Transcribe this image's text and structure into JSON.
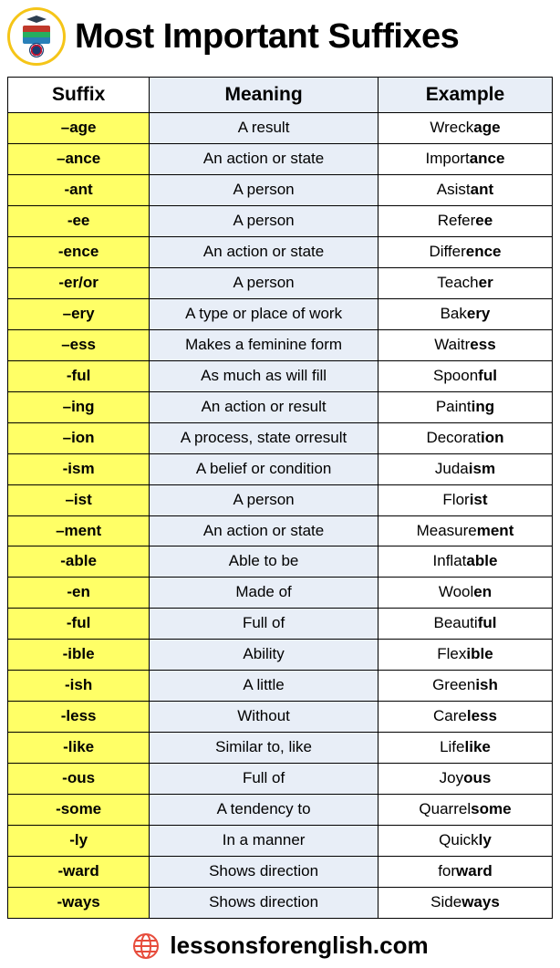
{
  "title": "Most Important Suffixes",
  "footer_url": "lessonsforenglish.com",
  "columns": [
    "Suffix",
    "Meaning",
    "Example"
  ],
  "rows": [
    {
      "suffix": "–age",
      "meaning": "A result",
      "stem": "Wreck",
      "bold": "age"
    },
    {
      "suffix": "–ance",
      "meaning": "An action or state",
      "stem": "Import",
      "bold": "ance"
    },
    {
      "suffix": "-ant",
      "meaning": "A person",
      "stem": "Asist",
      "bold": "ant"
    },
    {
      "suffix": "-ee",
      "meaning": "A person",
      "stem": "Refer",
      "bold": "ee"
    },
    {
      "suffix": "-ence",
      "meaning": "An action or state",
      "stem": "Differ",
      "bold": "ence"
    },
    {
      "suffix": "-er/or",
      "meaning": "A person",
      "stem": "Teach",
      "bold": "er"
    },
    {
      "suffix": "–ery",
      "meaning": "A type or place of work",
      "stem": "Bak",
      "bold": "ery"
    },
    {
      "suffix": "–ess",
      "meaning": "Makes a feminine form",
      "stem": "Waitr",
      "bold": "ess"
    },
    {
      "suffix": "-ful",
      "meaning": "As much as will fill",
      "stem": "Spoon",
      "bold": "ful"
    },
    {
      "suffix": "–ing",
      "meaning": "An action or result",
      "stem": "Paint",
      "bold": "ing"
    },
    {
      "suffix": "–ion",
      "meaning": "A process, state orresult",
      "stem": "Decorat",
      "bold": "ion"
    },
    {
      "suffix": "-ism",
      "meaning": "A belief or condition",
      "stem": "Juda",
      "bold": "ism"
    },
    {
      "suffix": "–ist",
      "meaning": "A person",
      "stem": "Flor",
      "bold": "ist"
    },
    {
      "suffix": "–ment",
      "meaning": "An action or state",
      "stem": "Measure",
      "bold": "ment"
    },
    {
      "suffix": "-able",
      "meaning": "Able to be",
      "stem": "Inflat",
      "bold": "able"
    },
    {
      "suffix": "-en",
      "meaning": "Made of",
      "stem": "Wool",
      "bold": "en"
    },
    {
      "suffix": "-ful",
      "meaning": "Full of",
      "stem": "Beauti",
      "bold": "ful"
    },
    {
      "suffix": "-ible",
      "meaning": "Ability",
      "stem": "Flex",
      "bold": "ible"
    },
    {
      "suffix": "-ish",
      "meaning": "A little",
      "stem": "Green",
      "bold": "ish"
    },
    {
      "suffix": "-less",
      "meaning": "Without",
      "stem": "Care",
      "bold": "less"
    },
    {
      "suffix": "-like",
      "meaning": "Similar to, like",
      "stem": "Life",
      "bold": "like"
    },
    {
      "suffix": "-ous",
      "meaning": "Full of",
      "stem": "Joy",
      "bold": "ous"
    },
    {
      "suffix": "-some",
      "meaning": "A tendency to",
      "stem": "Quarrel",
      "bold": "some"
    },
    {
      "suffix": "-ly",
      "meaning": "In a manner",
      "stem": "Quick",
      "bold": "ly"
    },
    {
      "suffix": "-ward",
      "meaning": "Shows direction",
      "stem": "for",
      "bold": "ward"
    },
    {
      "suffix": "-ways",
      "meaning": "Shows direction",
      "stem": "Side",
      "bold": "ways"
    }
  ],
  "colors": {
    "suffix_bg": "#ffff66",
    "meaning_bg": "#e8eef7",
    "example_bg": "#ffffff",
    "border": "#000000",
    "logo_ring": "#f5c518",
    "www_icon": "#e74c3c"
  }
}
